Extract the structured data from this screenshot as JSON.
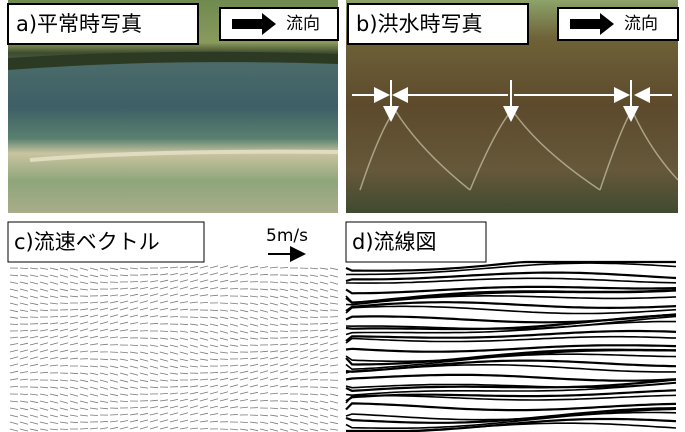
{
  "panels": [
    {
      "label": "a)平常時写真",
      "flow_label": "流向"
    },
    {
      "label": "b)洪水時写真",
      "flow_label": "流向"
    },
    {
      "label": "c)流速ベクトル",
      "scale_label": "5m/s"
    },
    {
      "label": "d)流線図"
    }
  ]
}
